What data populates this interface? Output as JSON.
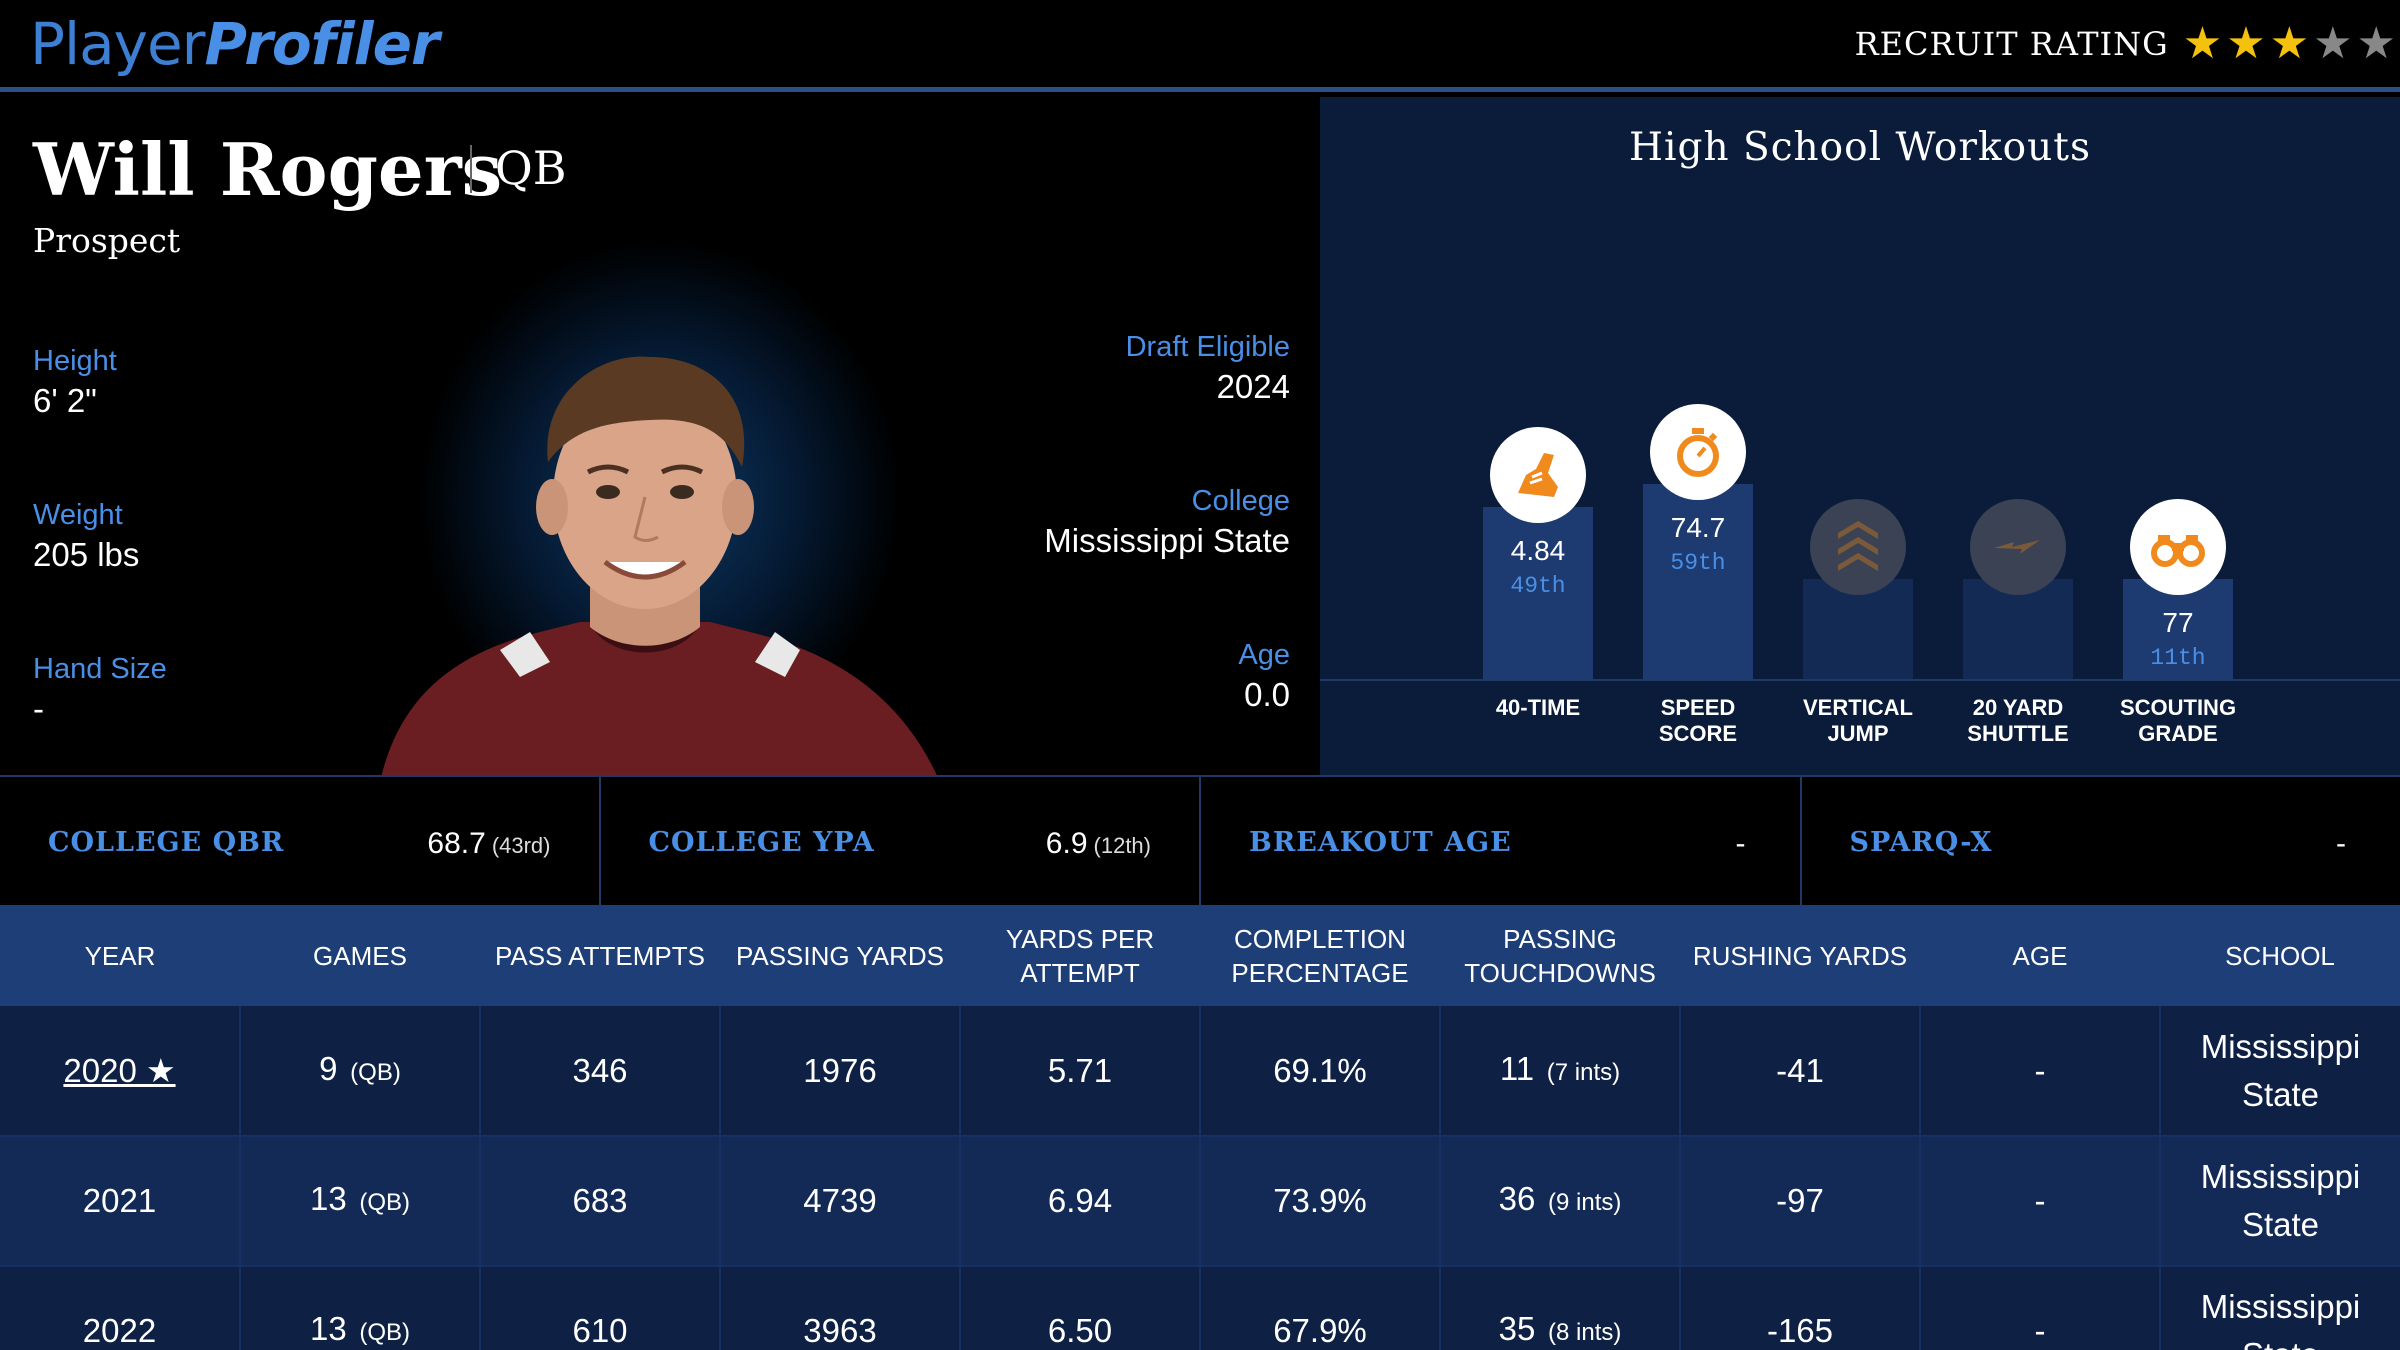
{
  "header": {
    "logo_part1": "Player",
    "logo_part2": "Profiler",
    "rating_label": "RECRUIT RATING",
    "stars_filled": 3,
    "stars_total": 5
  },
  "profile": {
    "name": "Will Rogers",
    "position": "QB",
    "status": "Prospect",
    "height_label": "Height",
    "height": "6' 2\"",
    "weight_label": "Weight",
    "weight": "205 lbs",
    "hand_label": "Hand Size",
    "hand": "-",
    "draft_label": "Draft Eligible",
    "draft": "2024",
    "college_label": "College",
    "college": "Mississippi State",
    "age_label": "Age",
    "age": "0.0"
  },
  "workouts": {
    "title": "High School Workouts",
    "items": [
      {
        "label1": "40-TIME",
        "label2": "",
        "value": "4.84",
        "pct": "49th",
        "percentile": 49,
        "icon": "shoe-icon",
        "active": true
      },
      {
        "label1": "SPEED",
        "label2": "SCORE",
        "value": "74.7",
        "pct": "59th",
        "percentile": 59,
        "icon": "stopwatch-icon",
        "active": true
      },
      {
        "label1": "VERTICAL",
        "label2": "JUMP",
        "value": "",
        "pct": "",
        "percentile": null,
        "icon": "chevrons-up-icon",
        "active": false
      },
      {
        "label1": "20 YARD",
        "label2": "SHUTTLE",
        "value": "",
        "pct": "",
        "percentile": null,
        "icon": "shuttle-bolt-icon",
        "active": false
      },
      {
        "label1": "SCOUTING",
        "label2": "GRADE",
        "value": "77",
        "pct": "11th",
        "percentile": 11,
        "icon": "binoculars-icon",
        "active": true
      }
    ],
    "accent": "#f08a1c"
  },
  "metrics": [
    {
      "label": "COLLEGE QBR",
      "value": "68.7",
      "rank": "(43rd)"
    },
    {
      "label": "COLLEGE YPA",
      "value": "6.9",
      "rank": "(12th)"
    },
    {
      "label": "BREAKOUT AGE",
      "value": "-",
      "rank": ""
    },
    {
      "label": "SPARQ-X",
      "value": "-",
      "rank": ""
    }
  ],
  "table": {
    "headers": [
      {
        "l1": "YEAR",
        "l2": ""
      },
      {
        "l1": "GAMES",
        "l2": ""
      },
      {
        "l1": "PASS ATTEMPTS",
        "l2": ""
      },
      {
        "l1": "PASSING YARDS",
        "l2": ""
      },
      {
        "l1": "YARDS PER ATTEMPT",
        "l2": ""
      },
      {
        "l1": "COMPLETION",
        "l2": "PERCENTAGE"
      },
      {
        "l1": "PASSING",
        "l2": "TOUCHDOWNS"
      },
      {
        "l1": "RUSHING YARDS",
        "l2": ""
      },
      {
        "l1": "AGE",
        "l2": ""
      },
      {
        "l1": "SCHOOL",
        "l2": ""
      }
    ],
    "rows": [
      {
        "year": "2020 ★",
        "games": "9",
        "games_pos": "(QB)",
        "att": "346",
        "yds": "1976",
        "ypa": "5.71",
        "cmp": "69.1%",
        "td": "11",
        "ints": "(7 ints)",
        "rush": "-41",
        "age": "-",
        "school1": "Mississippi",
        "school2": "State"
      },
      {
        "year": "2021",
        "games": "13",
        "games_pos": "(QB)",
        "att": "683",
        "yds": "4739",
        "ypa": "6.94",
        "cmp": "73.9%",
        "td": "36",
        "ints": "(9 ints)",
        "rush": "-97",
        "age": "-",
        "school1": "Mississippi",
        "school2": "State"
      },
      {
        "year": "2022",
        "games": "13",
        "games_pos": "(QB)",
        "att": "610",
        "yds": "3963",
        "ypa": "6.50",
        "cmp": "67.9%",
        "td": "35",
        "ints": "(8 ints)",
        "rush": "-165",
        "age": "-",
        "school1": "Mississippi",
        "school2": "State"
      }
    ]
  }
}
